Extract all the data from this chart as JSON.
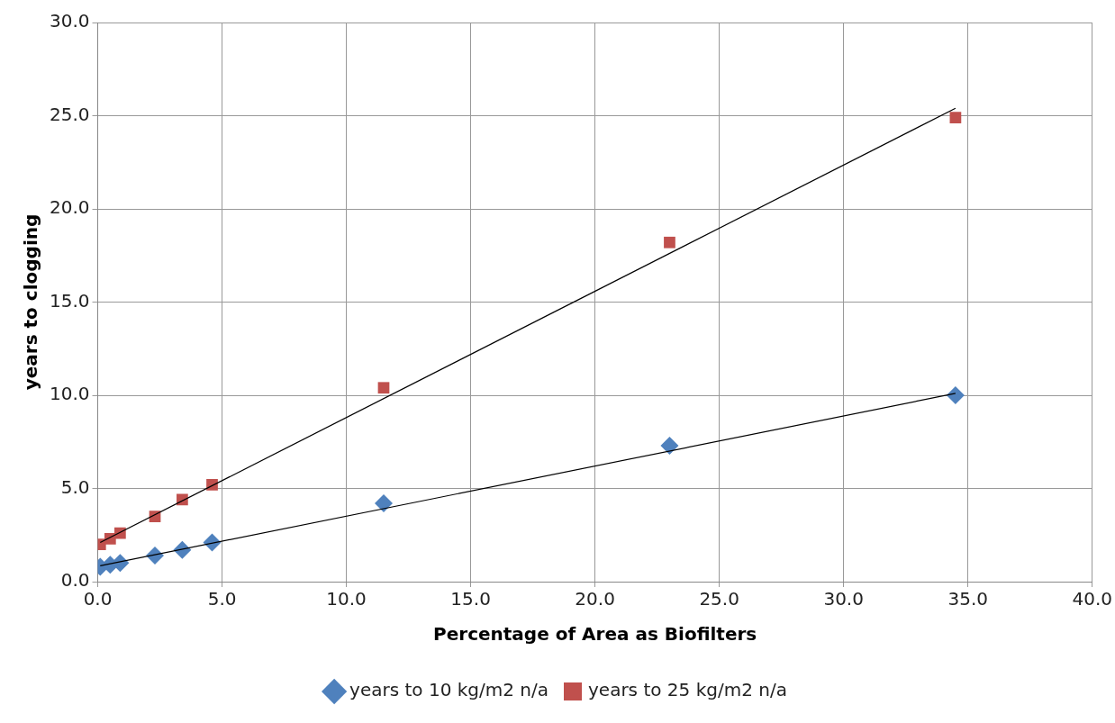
{
  "chart_data": {
    "type": "scatter",
    "xlabel": "Percentage of Area as Biofilters",
    "ylabel": "years to clogging",
    "xlim": [
      0,
      40
    ],
    "xticks": [
      {
        "value": 0,
        "label": "0.0"
      },
      {
        "value": 5,
        "label": "5.0"
      },
      {
        "value": 10,
        "label": "10.0"
      },
      {
        "value": 15,
        "label": "15.0"
      },
      {
        "value": 20,
        "label": "20.0"
      },
      {
        "value": 25,
        "label": "25.0"
      },
      {
        "value": 30,
        "label": "30.0"
      },
      {
        "value": 35,
        "label": "35.0"
      },
      {
        "value": 40,
        "label": "40.0"
      }
    ],
    "ylim": [
      0,
      30
    ],
    "yticks": [
      {
        "value": 0,
        "label": "0.0"
      },
      {
        "value": 5,
        "label": "5.0"
      },
      {
        "value": 10,
        "label": "10.0"
      },
      {
        "value": 15,
        "label": "15.0"
      },
      {
        "value": 20,
        "label": "20.0"
      },
      {
        "value": 25,
        "label": "25.0"
      },
      {
        "value": 30,
        "label": "30.0"
      }
    ],
    "grid": true,
    "legend": "bottom",
    "series": [
      {
        "name": "years to 10 kg/m2 n/a",
        "color": "#4f81bd",
        "marker": "diamond",
        "x": [
          0.1,
          0.5,
          0.9,
          2.3,
          3.4,
          4.6,
          11.5,
          23,
          34.5
        ],
        "values": [
          0.8,
          0.9,
          1.0,
          1.4,
          1.7,
          2.1,
          4.2,
          7.3,
          10.0
        ]
      },
      {
        "name": "years to 25 kg/m2 n/a",
        "color": "#c0504d",
        "marker": "square",
        "x": [
          0.1,
          0.5,
          0.9,
          2.3,
          3.4,
          4.6,
          11.5,
          23,
          34.5
        ],
        "values": [
          2.0,
          2.3,
          2.6,
          3.5,
          4.4,
          5.2,
          10.4,
          18.2,
          24.9
        ]
      },
      {
        "type": "line",
        "color": "#000000",
        "marker": "none",
        "x": [
          0.1,
          34.5
        ],
        "values": [
          0.85,
          10.1
        ]
      },
      {
        "type": "line",
        "color": "#000000",
        "marker": "none",
        "x": [
          0.1,
          34.5
        ],
        "values": [
          2.1,
          25.4
        ]
      }
    ]
  }
}
